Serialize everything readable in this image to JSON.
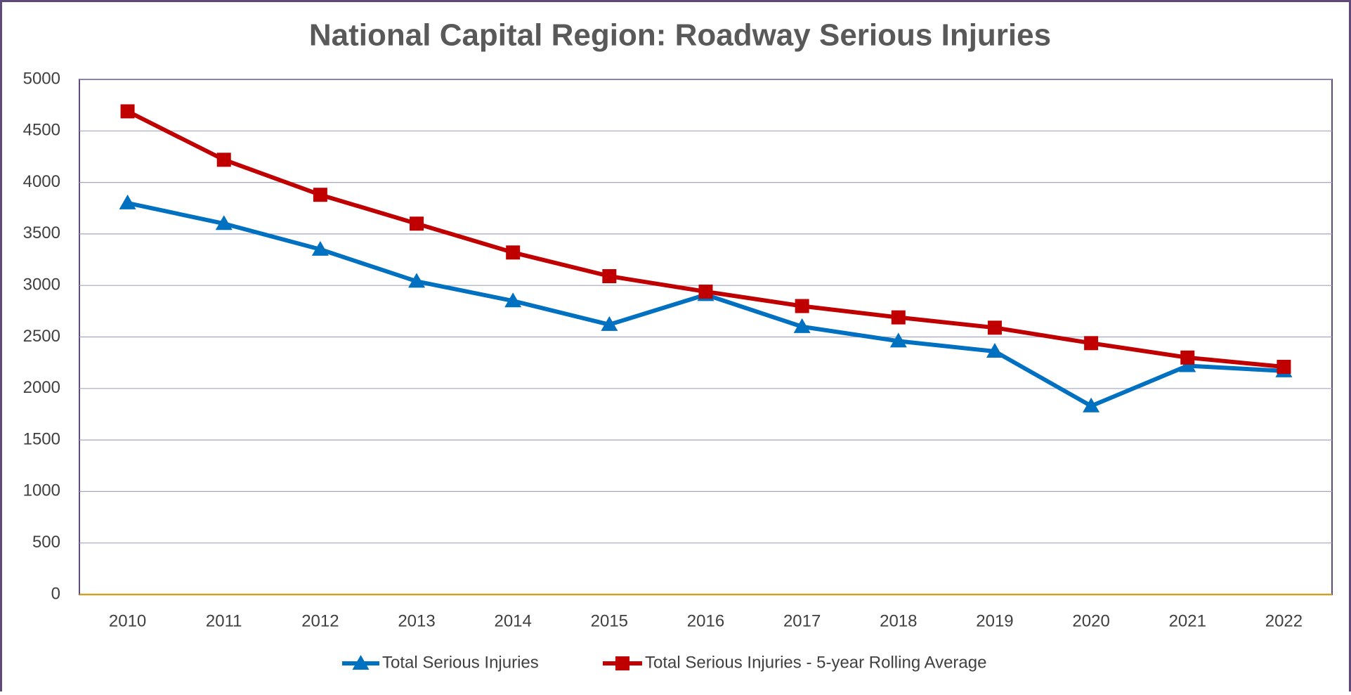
{
  "chart_data": {
    "type": "line",
    "title": "National Capital Region: Roadway Serious Injuries",
    "categories": [
      "2010",
      "2011",
      "2012",
      "2013",
      "2014",
      "2015",
      "2016",
      "2017",
      "2018",
      "2019",
      "2020",
      "2021",
      "2022"
    ],
    "series": [
      {
        "name": "Total Serious Injuries",
        "color": "#0070c0",
        "marker": "triangle",
        "values": [
          3800,
          3600,
          3350,
          3040,
          2850,
          2620,
          2910,
          2600,
          2460,
          2360,
          1830,
          2220,
          2170
        ]
      },
      {
        "name": "Total Serious Injuries - 5-year Rolling Average",
        "color": "#c00000",
        "marker": "square",
        "values": [
          4690,
          4220,
          3880,
          3600,
          3320,
          3090,
          2940,
          2800,
          2690,
          2590,
          2440,
          2300,
          2210
        ]
      }
    ],
    "ylim": [
      0,
      5000
    ],
    "yticks": [
      0,
      500,
      1000,
      1500,
      2000,
      2500,
      3000,
      3500,
      4000,
      4500,
      5000
    ],
    "grid": true,
    "legend": "bottom"
  }
}
